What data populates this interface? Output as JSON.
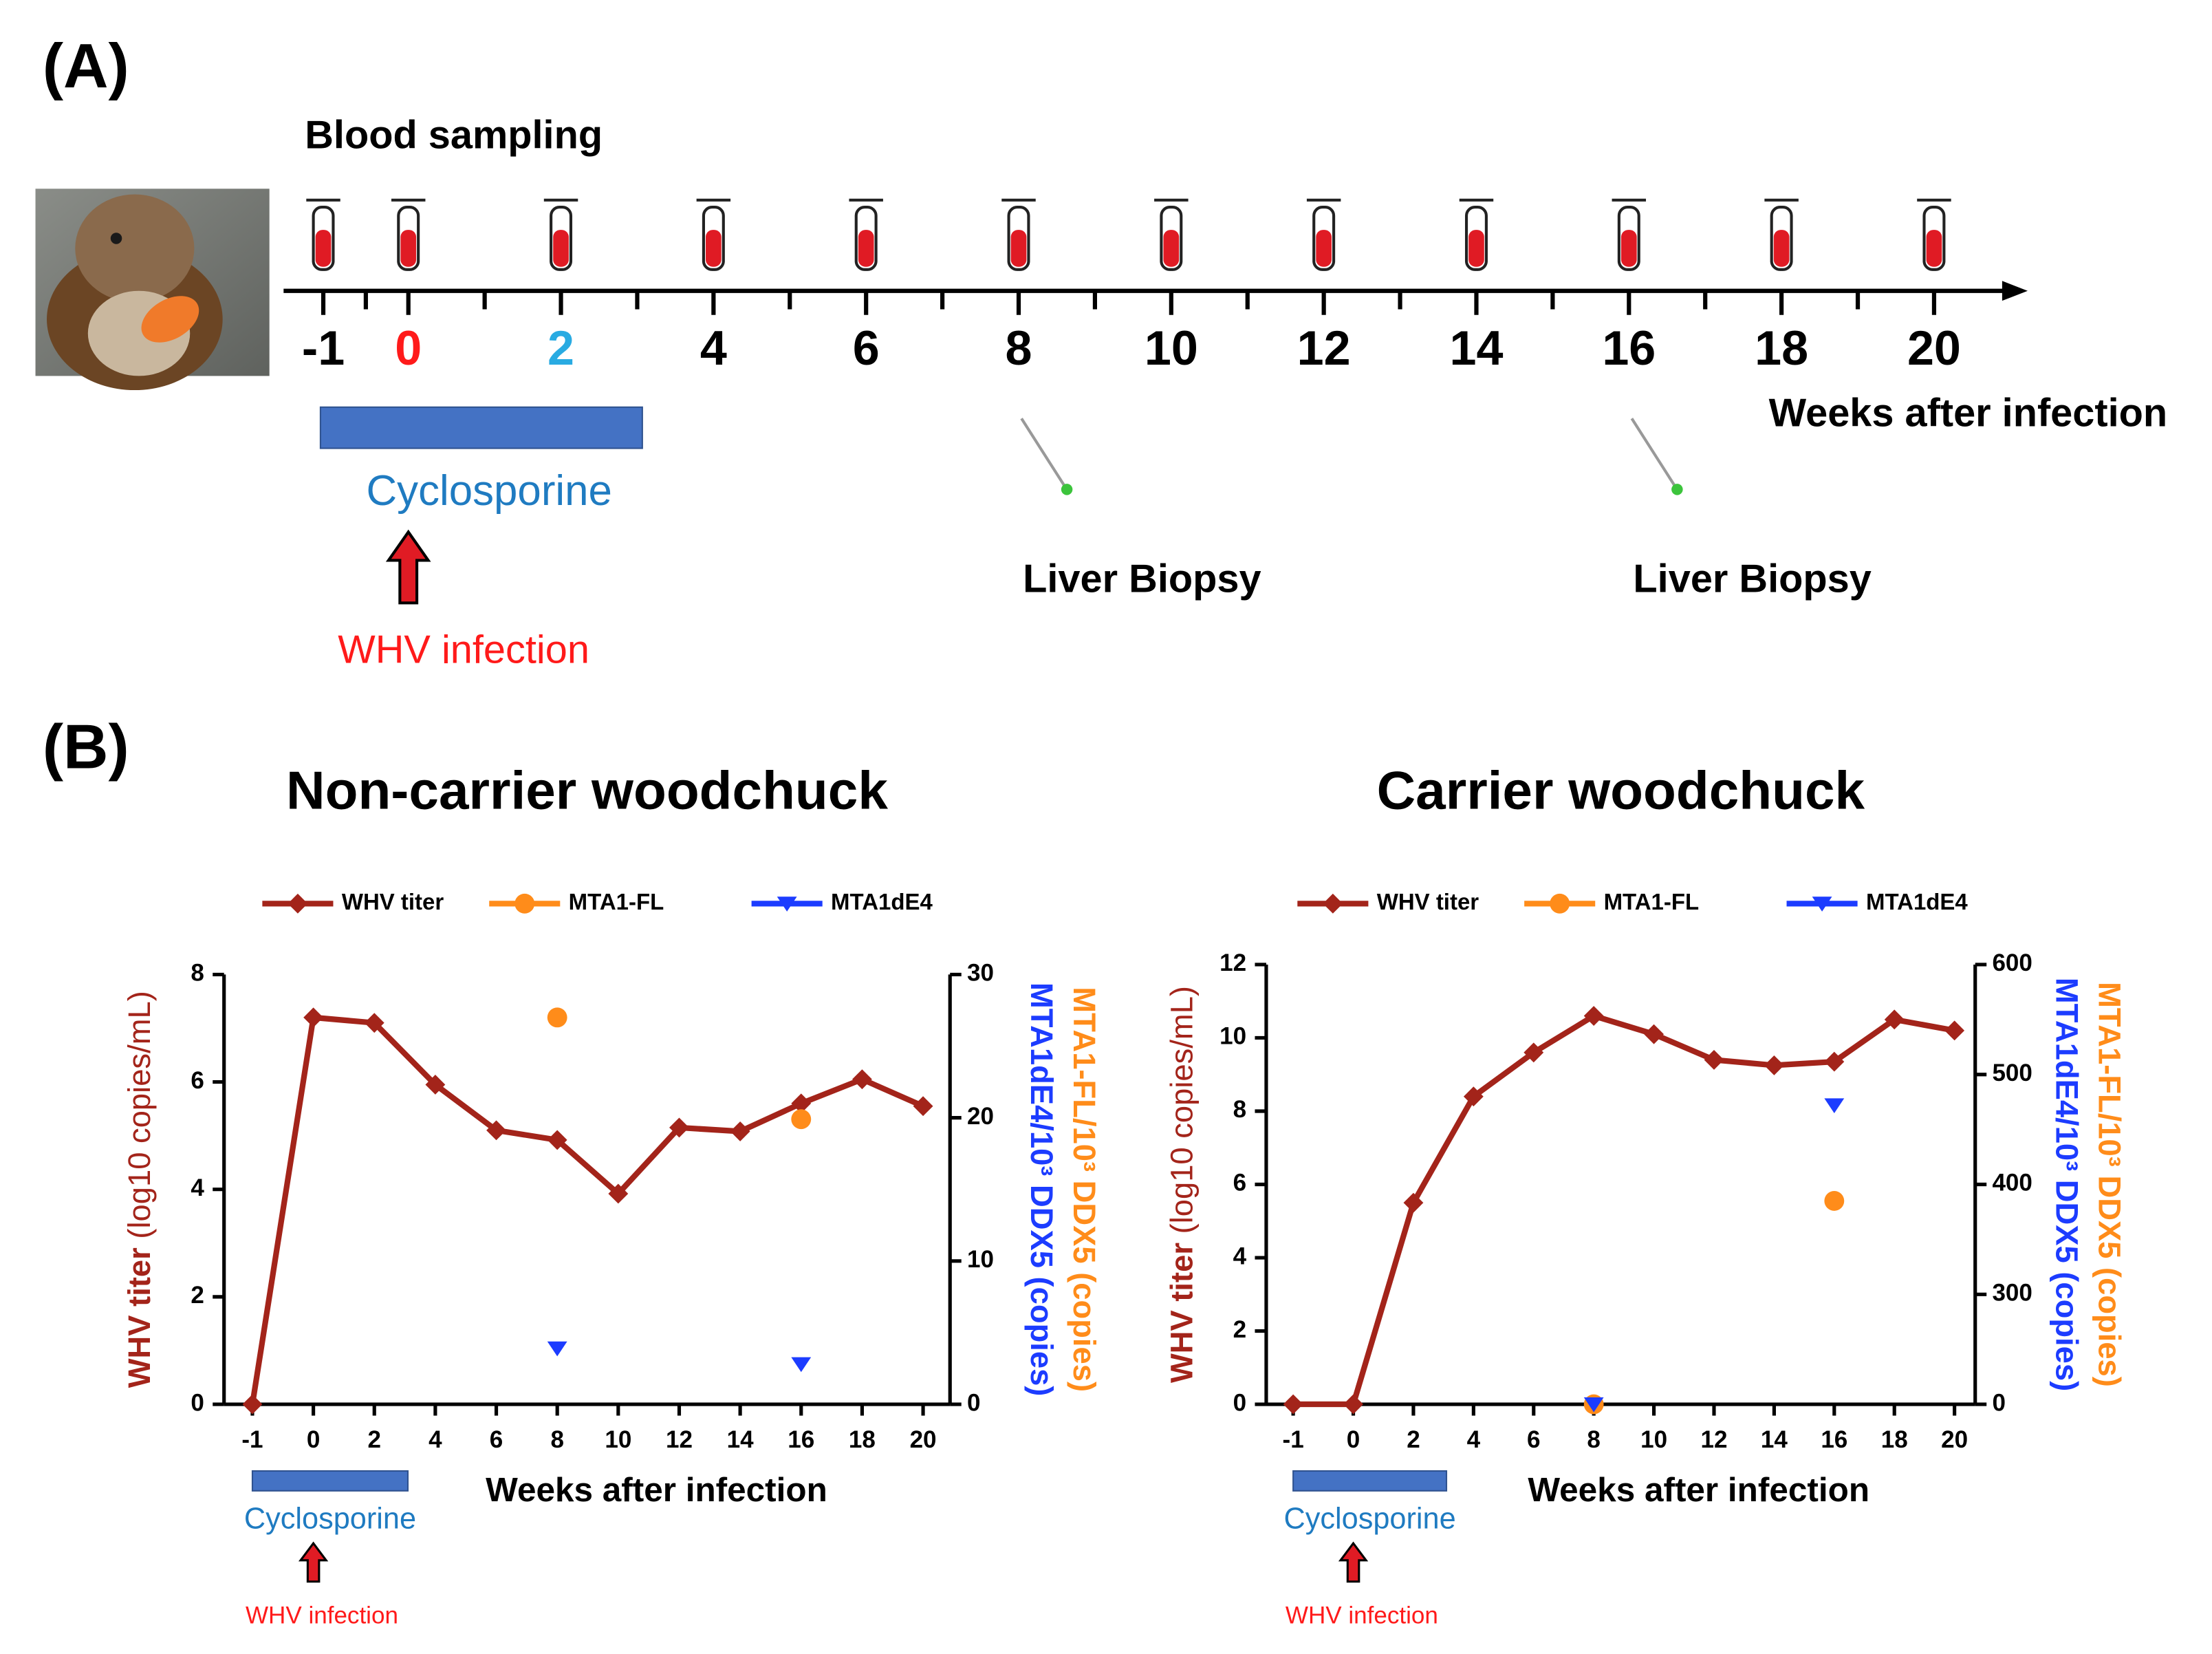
{
  "panel_a": {
    "label": "(A)",
    "blood_sampling": "Blood sampling",
    "weeks": [
      -1,
      0,
      2,
      4,
      6,
      8,
      10,
      12,
      14,
      16,
      18,
      20
    ],
    "week_colors": [
      "#000000",
      "#ff1a1a",
      "#29abe2",
      "#000000",
      "#000000",
      "#000000",
      "#000000",
      "#000000",
      "#000000",
      "#000000",
      "#000000",
      "#000000"
    ],
    "x_label": "Weeks after infection",
    "treatment": "Cyclosporine",
    "infection": "WHV infection",
    "biopsies": [
      {
        "week": 8,
        "label": "Liver Biopsy"
      },
      {
        "week": 16,
        "label": "Liver Biopsy"
      }
    ]
  },
  "panel_b": {
    "label": "(B)"
  },
  "chart_data": [
    {
      "type": "line",
      "title": "Non-carrier woodchuck",
      "categories": [
        "-1",
        "0",
        "2",
        "4",
        "6",
        "8",
        "10",
        "12",
        "14",
        "16",
        "18",
        "20"
      ],
      "x_label": "Weeks after infection",
      "y_label": "WHV titer (log10 copies/mL)",
      "y_label_color": "#a3241a",
      "y2_labels": [
        {
          "text": "MTA1-FL/10³ DDX5 (copies)",
          "color": "#ff8c1a"
        },
        {
          "text": "MTA1dE4/10³ DDX5 (copies)",
          "color": "#1c3cff"
        }
      ],
      "ylim": [
        0,
        8
      ],
      "yticks": [
        0,
        2,
        4,
        6,
        8
      ],
      "y2lim": [
        0,
        30
      ],
      "y2ticks": [
        0,
        10,
        20,
        30
      ],
      "series": [
        {
          "name": "WHV titer",
          "color": "#a3241a",
          "marker": "diamond",
          "values": [
            0,
            7.2,
            7.1,
            5.95,
            5.1,
            4.92,
            3.92,
            5.15,
            5.08,
            5.6,
            6.05,
            5.55
          ]
        },
        {
          "name": "MTA1-FL",
          "color": "#ff8c1a",
          "marker": "circle",
          "axis": "y2",
          "values": [
            null,
            null,
            null,
            null,
            null,
            27,
            null,
            null,
            null,
            19.9,
            null,
            null
          ]
        },
        {
          "name": "MTA1dE4",
          "color": "#1c3cff",
          "marker": "triangle-down",
          "axis": "y2",
          "values": [
            null,
            null,
            null,
            null,
            null,
            3.9,
            null,
            null,
            null,
            2.8,
            null,
            null
          ]
        }
      ],
      "annotations": {
        "treatment": "Cyclosporine",
        "infection": "WHV infection"
      }
    },
    {
      "type": "line",
      "title": "Carrier woodchuck",
      "categories": [
        "-1",
        "0",
        "2",
        "4",
        "6",
        "8",
        "10",
        "12",
        "14",
        "16",
        "18",
        "20"
      ],
      "x_label": "Weeks after infection",
      "y_label": "WHV titer (log10 copies/mL)",
      "y_label_color": "#a3241a",
      "y2_labels": [
        {
          "text": "MTA1-FL/10³ DDX5 (copies)",
          "color": "#ff8c1a"
        },
        {
          "text": "MTA1dE4/10³ DDX5 (copies)",
          "color": "#1c3cff"
        }
      ],
      "ylim": [
        0,
        12
      ],
      "yticks": [
        0,
        2,
        4,
        6,
        8,
        10,
        12
      ],
      "y2lim": [
        0,
        600
      ],
      "y2ticks": [
        0,
        300,
        400,
        500,
        600
      ],
      "series": [
        {
          "name": "WHV titer",
          "color": "#a3241a",
          "marker": "diamond",
          "values": [
            0,
            0,
            5.5,
            8.4,
            9.6,
            10.6,
            10.1,
            9.4,
            9.25,
            9.35,
            10.5,
            10.2
          ]
        },
        {
          "name": "MTA1-FL",
          "color": "#ff8c1a",
          "marker": "circle",
          "axis": "y2",
          "values": [
            null,
            null,
            null,
            null,
            null,
            0,
            null,
            null,
            null,
            385,
            null,
            null
          ]
        },
        {
          "name": "MTA1dE4",
          "color": "#1c3cff",
          "marker": "triangle-down",
          "axis": "y2",
          "values": [
            null,
            null,
            null,
            null,
            null,
            0,
            null,
            null,
            null,
            472,
            null,
            null
          ]
        }
      ],
      "annotations": {
        "treatment": "Cyclosporine",
        "infection": "WHV infection"
      }
    }
  ]
}
